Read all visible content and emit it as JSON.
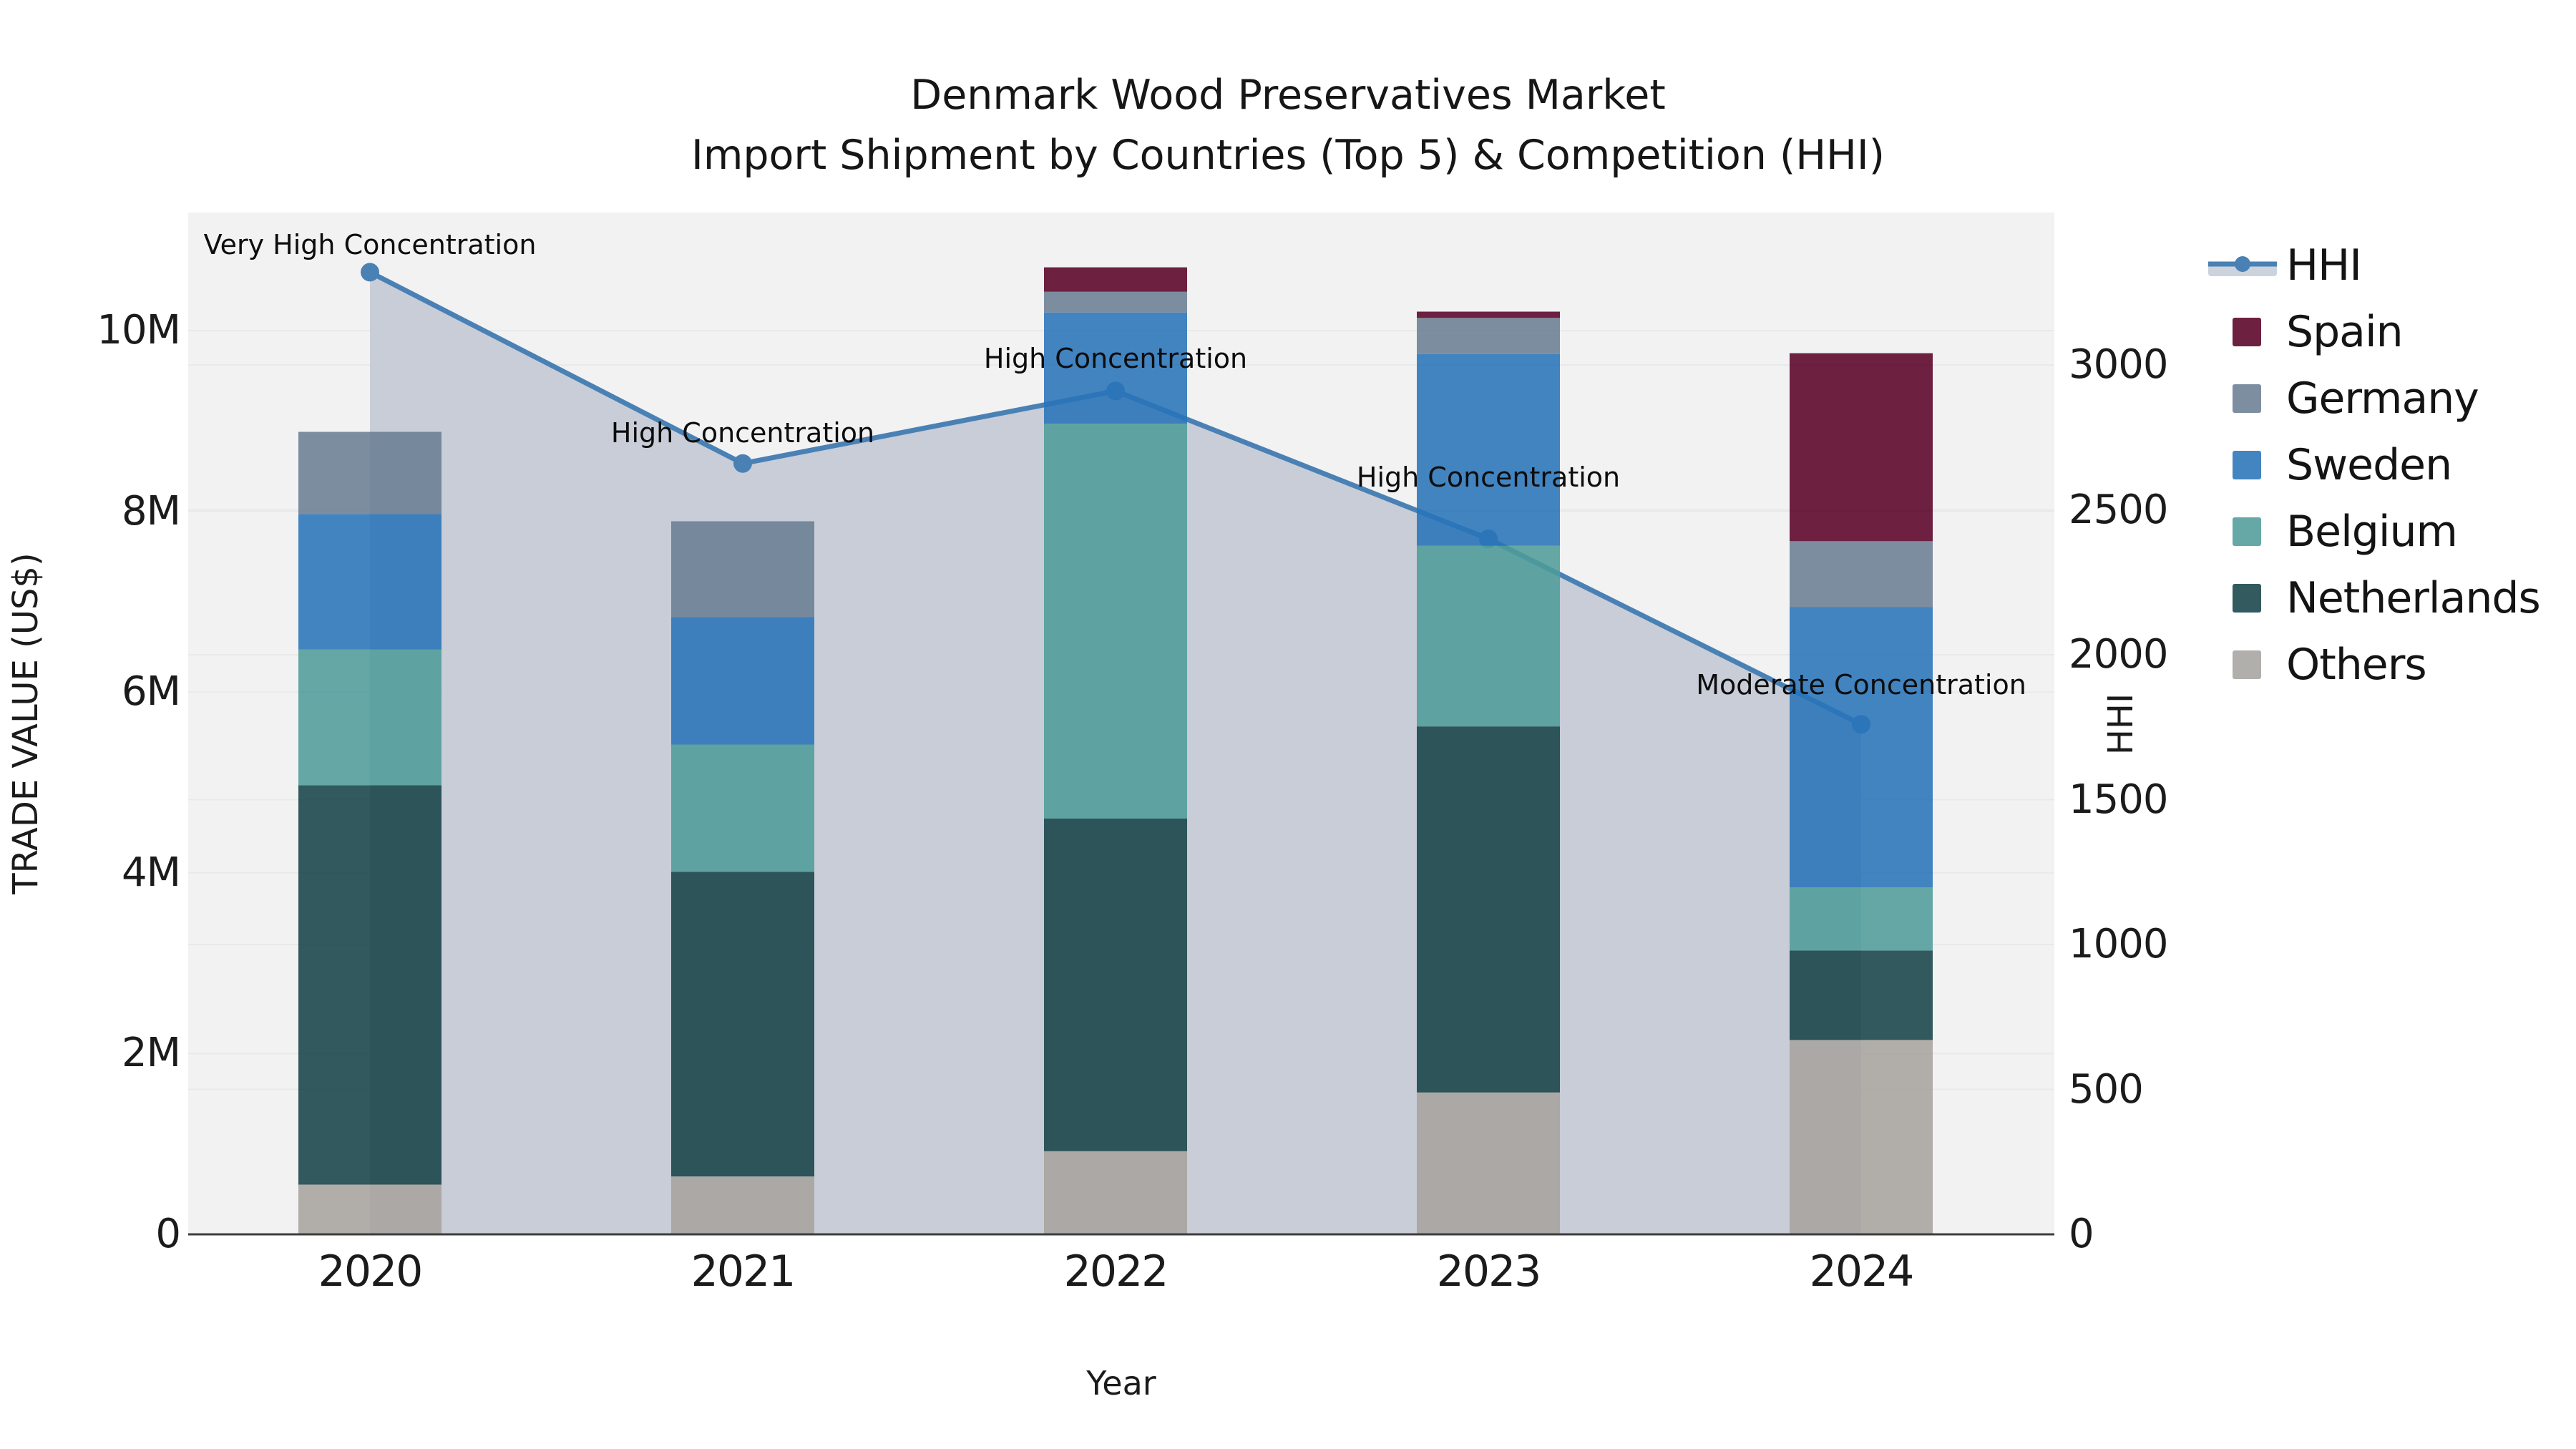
{
  "title": {
    "line1": "Denmark Wood Preservatives Market",
    "line2": "Import Shipment by Countries (Top 5) & Competition (HHI)"
  },
  "axes": {
    "x": {
      "label": "Year",
      "ticks": [
        "2020",
        "2021",
        "2022",
        "2023",
        "2024"
      ]
    },
    "y_left": {
      "label": "TRADE VALUE (US$)",
      "tick_labels": [
        "0",
        "2M",
        "4M",
        "6M",
        "8M",
        "10M"
      ],
      "tick_values_musd": [
        0,
        2,
        4,
        6,
        8,
        10
      ]
    },
    "y_right": {
      "label": "HHI",
      "tick_labels": [
        "0",
        "500",
        "1000",
        "1500",
        "2000",
        "2500",
        "3000"
      ],
      "tick_values": [
        0,
        500,
        1000,
        1500,
        2000,
        2500,
        3000
      ]
    }
  },
  "legend": {
    "items": [
      {
        "label": "HHI",
        "type": "line"
      },
      {
        "label": "Spain",
        "type": "patch",
        "color": "#6e2041"
      },
      {
        "label": "Germany",
        "type": "patch",
        "color": "#7d8ea1"
      },
      {
        "label": "Sweden",
        "type": "patch",
        "color": "#4385c1"
      },
      {
        "label": "Belgium",
        "type": "patch",
        "color": "#65a8a6"
      },
      {
        "label": "Netherlands",
        "type": "patch",
        "color": "#335a5e"
      },
      {
        "label": "Others",
        "type": "patch",
        "color": "#b1afac"
      }
    ]
  },
  "chart_data": {
    "type": "combo_stacked_bar_line",
    "title": "Denmark Wood Preservatives Market — Import Shipment by Countries (Top 5) & Competition (HHI)",
    "categories": [
      "2020",
      "2021",
      "2022",
      "2023",
      "2024"
    ],
    "bar_unit": "USD millions (left axis, TRADE VALUE US$)",
    "stack_order": "bottom to top as listed",
    "series": [
      {
        "name": "Others",
        "values": [
          0.55,
          0.64,
          0.92,
          1.57,
          2.15
        ]
      },
      {
        "name": "Netherlands",
        "values": [
          4.42,
          3.37,
          3.68,
          4.05,
          0.99
        ]
      },
      {
        "name": "Belgium",
        "values": [
          1.5,
          1.41,
          4.37,
          2.0,
          0.7
        ]
      },
      {
        "name": "Sweden",
        "values": [
          1.5,
          1.41,
          1.23,
          2.12,
          3.1
        ]
      },
      {
        "name": "Germany",
        "values": [
          0.91,
          1.06,
          0.23,
          0.4,
          0.73
        ]
      },
      {
        "name": "Spain",
        "values": [
          0.0,
          0.0,
          0.27,
          0.07,
          2.08
        ]
      }
    ],
    "bar_totals_musd": [
      8.88,
      7.88,
      10.7,
      10.21,
      9.75
    ],
    "line": {
      "name": "HHI",
      "axis": "right",
      "values": [
        3320,
        2660,
        2910,
        2400,
        1760
      ],
      "area_fill": true
    },
    "annotations": [
      "Very High Concentration",
      "High Concentration",
      "High Concentration",
      "High Concentration",
      "Moderate Concentration"
    ],
    "xlabel": "Year",
    "ylabel_left": "TRADE VALUE (US$)",
    "ylabel_right": "HHI",
    "ylim_left_musd": [
      0,
      11.3
    ],
    "ylim_right": [
      0,
      3530
    ],
    "grid": "on",
    "legend_position": "right"
  },
  "colors": {
    "plot_background": "#f2f2f3",
    "figure_background": "#ffffff",
    "grid": "#e8e9eb",
    "axis_line": "#3d3d3d",
    "hhi_line": "#4a81b5",
    "hhi_area": "#c5cad5",
    "legend_band": "#ccd3dc",
    "bars": {
      "Others": "#a6a29d",
      "Netherlands": "#154246",
      "Belgium": "#4e9b99",
      "Sweden": "#2773b8",
      "Germany": "#6a7d93",
      "Spain": "#580025"
    },
    "bar_opacity": 0.87
  }
}
